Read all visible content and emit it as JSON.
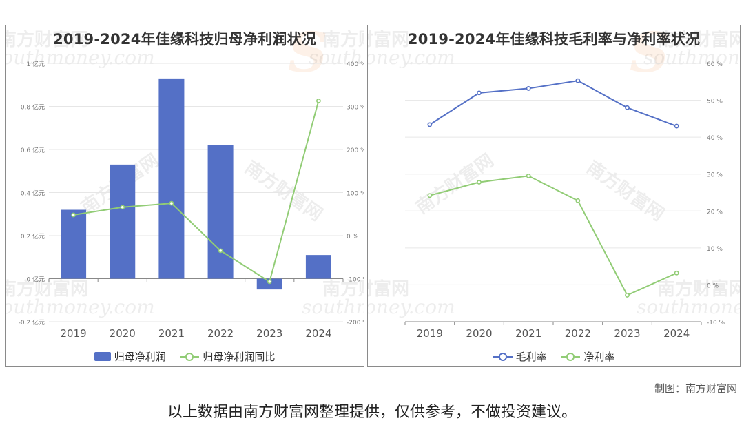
{
  "colors": {
    "primary": "#5470c6",
    "secondary": "#91cc75",
    "grid": "#e6e6e6",
    "axis": "#888888"
  },
  "watermark": {
    "cn": "南方财富网",
    "en": "southmoney.com"
  },
  "footer": {
    "credit": "制图：南方财富网",
    "disclaimer": "以上数据由南方财富网整理提供，仅供参考，不做投资建议。"
  },
  "chart_data": [
    {
      "type": "bar",
      "title": "2019-2024年佳缘科技归母净利润状况",
      "categories": [
        "2019",
        "2020",
        "2021",
        "2022",
        "2023",
        "2024"
      ],
      "y_left": {
        "ticks": [
          -0.2,
          0,
          0.2,
          0.4,
          0.6,
          0.8,
          1
        ],
        "tick_labels": [
          "-0.2 亿元",
          "0 亿元",
          "0.2 亿元",
          "0.4 亿元",
          "0.6 亿元",
          "0.8 亿元",
          "1 亿元"
        ],
        "range": [
          -0.2,
          1
        ]
      },
      "y_right": {
        "ticks": [
          -200,
          -100,
          0,
          100,
          200,
          300,
          400
        ],
        "tick_labels": [
          "-200 %",
          "-100 %",
          "0 %",
          "100 %",
          "200 %",
          "300 %",
          "400 %"
        ],
        "range": [
          -200,
          400
        ]
      },
      "series": [
        {
          "name": "归母净利润",
          "type": "bar",
          "axis": "left",
          "values": [
            0.32,
            0.53,
            0.93,
            0.62,
            -0.05,
            0.11
          ]
        },
        {
          "name": "归母净利润同比",
          "type": "line",
          "axis": "right",
          "values": [
            48,
            66,
            75,
            -35,
            -107,
            313
          ]
        }
      ],
      "legend_position": "bottom"
    },
    {
      "type": "line",
      "title": "2019-2024年佳缘科技毛利率与净利率状况",
      "categories": [
        "2019",
        "2020",
        "2021",
        "2022",
        "2023",
        "2024"
      ],
      "y_right": {
        "ticks": [
          -10,
          0,
          10,
          20,
          30,
          40,
          50,
          60
        ],
        "tick_labels": [
          "-10 %",
          "0 %",
          "10 %",
          "20 %",
          "30 %",
          "40 %",
          "50 %",
          "60 %"
        ],
        "range": [
          -10,
          60
        ]
      },
      "series": [
        {
          "name": "毛利率",
          "values": [
            43.4,
            52.0,
            53.2,
            55.3,
            48.0,
            43.0
          ]
        },
        {
          "name": "净利率",
          "values": [
            24.2,
            27.8,
            29.5,
            22.8,
            -2.8,
            3.2
          ]
        }
      ],
      "legend_position": "bottom"
    }
  ]
}
